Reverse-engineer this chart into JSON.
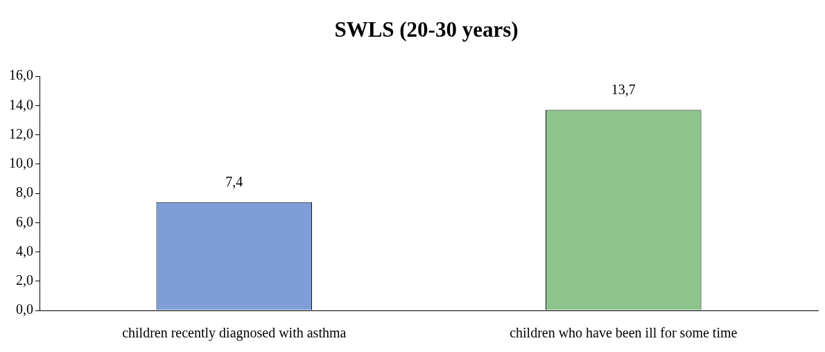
{
  "chart_data": {
    "type": "bar",
    "title": "SWLS (20-30 years)",
    "categories": [
      "children recently diagnosed with asthma",
      "children who have been ill for some time"
    ],
    "values": [
      7.4,
      13.7
    ],
    "colors": [
      "#7f9ed8",
      "#8cc48c"
    ],
    "value_labels": [
      "7,4",
      "13,7"
    ],
    "ylim": [
      0,
      16
    ],
    "yticks": [
      {
        "value": 0,
        "label": "0,0"
      },
      {
        "value": 2,
        "label": "2,0"
      },
      {
        "value": 4,
        "label": "4,0"
      },
      {
        "value": 6,
        "label": "6,0"
      },
      {
        "value": 8,
        "label": "8,0"
      },
      {
        "value": 10,
        "label": "10,0"
      },
      {
        "value": 12,
        "label": "12,0"
      },
      {
        "value": 14,
        "label": "14,0"
      },
      {
        "value": 16,
        "label": "16,0"
      }
    ],
    "grid": false,
    "legend": false
  }
}
